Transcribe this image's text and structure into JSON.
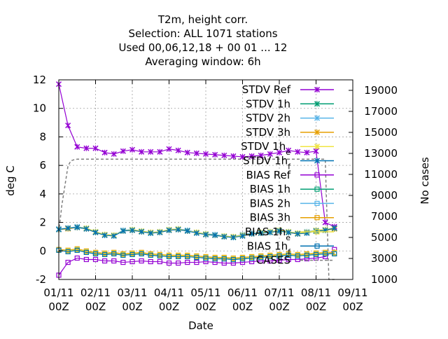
{
  "chart_data": {
    "type": "line",
    "title_lines": [
      "T2m, height corr.",
      "Selection: ALL    1071 stations",
      "Used  00,06,12,18 + 00 01 ... 12",
      "Averaging window:  6h"
    ],
    "xlabel": "Date",
    "ylabel": "deg C",
    "y2label": "No cases",
    "xlim": [
      0,
      8
    ],
    "ylim": [
      -2,
      12
    ],
    "y2lim": [
      1000,
      20000
    ],
    "x_tick_labels": [
      [
        "01/11",
        "00Z"
      ],
      [
        "02/11",
        "00Z"
      ],
      [
        "03/11",
        "00Z"
      ],
      [
        "04/11",
        "00Z"
      ],
      [
        "05/11",
        "00Z"
      ],
      [
        "06/11",
        "00Z"
      ],
      [
        "07/11",
        "00Z"
      ],
      [
        "08/11",
        "00Z"
      ],
      [
        "09/11",
        "00Z"
      ]
    ],
    "y_ticks": [
      -2,
      0,
      2,
      4,
      6,
      8,
      10,
      12
    ],
    "y2_ticks": [
      1000,
      3000,
      5000,
      7000,
      9000,
      11000,
      13000,
      15000,
      17000,
      19000
    ],
    "grid": true,
    "legend_position": "top-right",
    "x": [
      0,
      0.25,
      0.5,
      0.75,
      1,
      1.25,
      1.5,
      1.75,
      2,
      2.25,
      2.5,
      2.75,
      3,
      3.25,
      3.5,
      3.75,
      4,
      4.25,
      4.5,
      4.75,
      5,
      5.25,
      5.5,
      5.75,
      6,
      6.25,
      6.5,
      6.75,
      7,
      7.25,
      7.5
    ],
    "series": [
      {
        "name": "STDV Ref",
        "color": "#9400d3",
        "marker": "x-star",
        "axis": "y",
        "values": [
          11.7,
          8.8,
          7.3,
          7.2,
          7.2,
          6.9,
          6.8,
          7.0,
          7.1,
          6.95,
          6.95,
          6.95,
          7.15,
          7.05,
          6.9,
          6.85,
          6.8,
          6.75,
          6.7,
          6.65,
          6.6,
          6.65,
          6.7,
          6.8,
          6.9,
          7.05,
          6.95,
          6.9,
          7.0,
          2.0,
          1.7
        ]
      },
      {
        "name": "STDV 1h",
        "color": "#009e73",
        "marker": "x-star",
        "axis": "y",
        "values": [
          1.5,
          1.6,
          1.65,
          1.55,
          1.3,
          1.1,
          1.1,
          1.4,
          1.45,
          1.35,
          1.25,
          1.3,
          1.45,
          1.5,
          1.4,
          1.3,
          1.15,
          1.1,
          1.0,
          0.95,
          1.1,
          1.2,
          1.25,
          1.3,
          1.4,
          1.3,
          1.2,
          1.3,
          1.4,
          1.45,
          1.55
        ]
      },
      {
        "name": "STDV 2h",
        "color": "#56b4e9",
        "marker": "x-star",
        "axis": "y",
        "values": [
          1.55,
          1.6,
          1.7,
          1.6,
          1.35,
          1.15,
          1.1,
          1.45,
          1.5,
          1.4,
          1.3,
          1.35,
          1.5,
          1.55,
          1.45,
          1.3,
          1.2,
          1.15,
          1.05,
          1.0,
          1.15,
          1.25,
          1.3,
          1.35,
          1.45,
          1.35,
          1.25,
          1.35,
          1.45,
          1.5,
          1.6
        ]
      },
      {
        "name": "STDV 3h",
        "color": "#e69f00",
        "marker": "x-star",
        "axis": "y",
        "values": [
          1.5,
          1.55,
          1.65,
          1.55,
          1.3,
          1.15,
          1.1,
          1.4,
          1.45,
          1.35,
          1.3,
          1.3,
          1.45,
          1.5,
          1.4,
          1.3,
          1.15,
          1.1,
          1.0,
          1.0,
          1.1,
          1.2,
          1.25,
          1.3,
          1.4,
          1.3,
          1.2,
          1.3,
          1.4,
          1.45,
          1.55
        ]
      },
      {
        "name": "STDV 1h_e",
        "color": "#f0e442",
        "marker": "x-star",
        "axis": "y",
        "values": [
          1.5,
          1.6,
          1.65,
          1.6,
          1.35,
          1.15,
          1.1,
          1.4,
          1.5,
          1.4,
          1.3,
          1.35,
          1.5,
          1.55,
          1.4,
          1.3,
          1.2,
          1.1,
          1.05,
          1.0,
          1.1,
          1.2,
          1.3,
          1.35,
          1.45,
          1.35,
          1.25,
          1.3,
          1.45,
          1.5,
          1.6
        ]
      },
      {
        "name": "STDV 1h_f",
        "color": "#0072b2",
        "marker": "x-star",
        "axis": "y",
        "values": [
          1.5,
          1.6,
          1.65,
          1.55,
          1.3,
          1.1,
          1.05,
          1.4,
          1.45,
          1.35,
          1.25,
          1.3,
          1.45,
          1.5,
          1.4,
          1.25,
          1.15,
          1.1,
          1.0,
          0.95,
          1.05,
          1.2,
          1.25,
          1.3,
          1.4,
          1.3,
          1.2,
          1.25,
          1.4,
          1.45,
          1.6
        ]
      },
      {
        "name": "BIAS Ref",
        "color": "#9400d3",
        "marker": "square",
        "axis": "y",
        "values": [
          -1.7,
          -0.8,
          -0.5,
          -0.6,
          -0.6,
          -0.7,
          -0.7,
          -0.8,
          -0.75,
          -0.7,
          -0.75,
          -0.75,
          -0.85,
          -0.85,
          -0.8,
          -0.8,
          -0.75,
          -0.8,
          -0.85,
          -0.85,
          -0.8,
          -0.75,
          -0.7,
          -0.7,
          -0.65,
          -0.6,
          -0.6,
          -0.55,
          -0.5,
          -0.4,
          0.1
        ]
      },
      {
        "name": "BIAS 1h",
        "color": "#009e73",
        "marker": "square",
        "axis": "y",
        "values": [
          0.05,
          -0.05,
          0.05,
          -0.1,
          -0.2,
          -0.25,
          -0.2,
          -0.3,
          -0.25,
          -0.2,
          -0.3,
          -0.35,
          -0.4,
          -0.4,
          -0.4,
          -0.45,
          -0.5,
          -0.55,
          -0.55,
          -0.6,
          -0.55,
          -0.5,
          -0.45,
          -0.4,
          -0.35,
          -0.3,
          -0.35,
          -0.3,
          -0.25,
          -0.2,
          -0.2
        ]
      },
      {
        "name": "BIAS 2h",
        "color": "#56b4e9",
        "marker": "square",
        "axis": "y",
        "values": [
          0.05,
          0.0,
          0.1,
          -0.05,
          -0.15,
          -0.2,
          -0.15,
          -0.25,
          -0.2,
          -0.15,
          -0.25,
          -0.3,
          -0.35,
          -0.35,
          -0.35,
          -0.4,
          -0.45,
          -0.5,
          -0.5,
          -0.55,
          -0.5,
          -0.45,
          -0.4,
          -0.35,
          -0.3,
          -0.25,
          -0.3,
          -0.25,
          -0.2,
          -0.15,
          -0.15
        ]
      },
      {
        "name": "BIAS 3h",
        "color": "#e69f00",
        "marker": "square",
        "axis": "y",
        "values": [
          0.1,
          0.05,
          0.15,
          0.0,
          -0.1,
          -0.15,
          -0.1,
          -0.2,
          -0.15,
          -0.1,
          -0.2,
          -0.25,
          -0.3,
          -0.3,
          -0.3,
          -0.35,
          -0.4,
          -0.45,
          -0.45,
          -0.5,
          -0.45,
          -0.4,
          -0.35,
          -0.3,
          -0.25,
          -0.2,
          -0.25,
          -0.2,
          -0.15,
          -0.1,
          -0.1
        ]
      },
      {
        "name": "BIAS 1h_e",
        "color": "#f0e442",
        "marker": "square",
        "axis": "y",
        "values": [
          0.05,
          0.0,
          0.1,
          -0.05,
          -0.15,
          -0.2,
          -0.15,
          -0.25,
          -0.2,
          -0.15,
          -0.25,
          -0.3,
          -0.35,
          -0.35,
          -0.35,
          -0.4,
          -0.45,
          -0.5,
          -0.5,
          -0.55,
          -0.5,
          -0.45,
          -0.4,
          -0.35,
          -0.3,
          -0.25,
          -0.3,
          -0.25,
          -0.2,
          -0.15,
          -0.15
        ]
      },
      {
        "name": "BIAS 1h_f",
        "color": "#0072b2",
        "marker": "square",
        "axis": "y",
        "values": [
          0.05,
          -0.05,
          0.05,
          -0.1,
          -0.2,
          -0.25,
          -0.2,
          -0.3,
          -0.25,
          -0.2,
          -0.3,
          -0.35,
          -0.4,
          -0.4,
          -0.4,
          -0.45,
          -0.5,
          -0.55,
          -0.55,
          -0.6,
          -0.55,
          -0.5,
          -0.45,
          -0.4,
          -0.35,
          -0.3,
          -0.35,
          -0.3,
          -0.25,
          -0.2,
          -0.2
        ]
      }
    ],
    "cases": {
      "name": "CASES",
      "color": "#808080",
      "dash": true,
      "axis": "y2",
      "x": [
        0,
        0.08,
        0.17,
        0.25,
        0.33,
        0.42,
        0.5,
        0.75,
        1,
        1.5,
        2,
        3,
        4,
        5,
        6,
        6.5,
        7,
        7.1,
        7.25,
        7.35,
        7.5
      ],
      "values": [
        5500,
        8000,
        10000,
        11800,
        12300,
        12400,
        12450,
        12450,
        12450,
        12450,
        12450,
        12450,
        12450,
        12450,
        12450,
        12450,
        12450,
        12450,
        12450,
        1000,
        1000
      ]
    }
  }
}
